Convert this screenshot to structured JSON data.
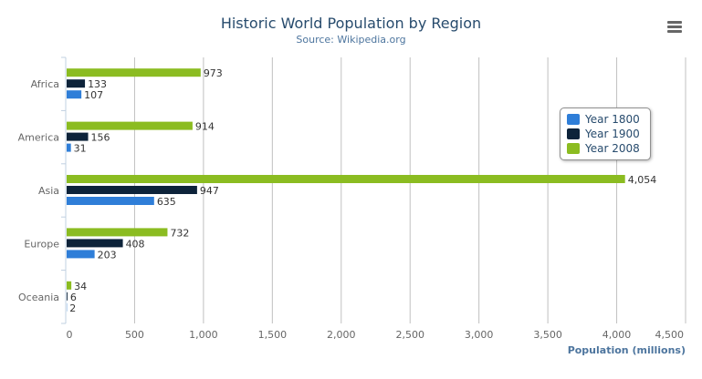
{
  "menu_icon": "hamburger-menu-icon",
  "chart_data": {
    "type": "bar",
    "orientation": "horizontal",
    "title": "Historic World Population by Region",
    "subtitle": "Source: Wikipedia.org",
    "categories": [
      "Africa",
      "America",
      "Asia",
      "Europe",
      "Oceania"
    ],
    "xlabel": "",
    "ylabel": "Population (millions)",
    "ylim": [
      0,
      4500
    ],
    "ticks": [
      "0",
      "500",
      "1,000",
      "1,500",
      "2,000",
      "2,500",
      "3,000",
      "3,500",
      "4,000",
      "4,500"
    ],
    "grid": true,
    "legend_placement": "right",
    "series": [
      {
        "name": "Year 1800",
        "color": "#2f7ed8",
        "values": [
          107,
          31,
          635,
          203,
          2
        ],
        "labels": [
          "107",
          "31",
          "635",
          "203",
          "2"
        ]
      },
      {
        "name": "Year 1900",
        "color": "#0d233a",
        "values": [
          133,
          156,
          947,
          408,
          6
        ],
        "labels": [
          "133",
          "156",
          "947",
          "408",
          "6"
        ]
      },
      {
        "name": "Year 2008",
        "color": "#8bbc21",
        "values": [
          973,
          914,
          4054,
          732,
          34
        ],
        "labels": [
          "973",
          "914",
          "4,054",
          "732",
          "34"
        ]
      }
    ]
  }
}
